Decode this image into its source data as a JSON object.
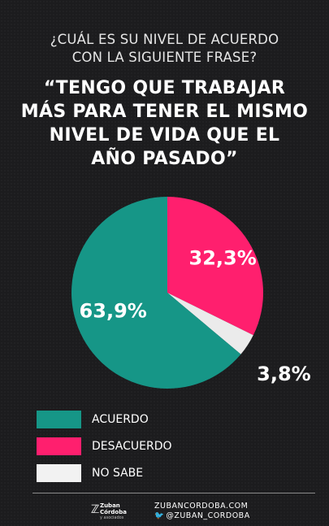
{
  "header": {
    "question_line1": "¿CUÁL ES SU NIVEL DE ACUERDO",
    "question_line2": "CON LA SIGUIENTE FRASE?",
    "statement_line1": "“TENGO QUE TRABAJAR",
    "statement_line2": "MÁS PARA TENER EL MISMO",
    "statement_line3": "NIVEL DE VIDA QUE EL",
    "statement_line4": "AÑO PASADO”"
  },
  "chart_data": {
    "type": "pie",
    "title": "",
    "slices": [
      {
        "label": "DESACUERDO",
        "value": 32.3,
        "display": "32,3%",
        "color": "#ff1f6e"
      },
      {
        "label": "NO SABE",
        "value": 3.8,
        "display": "3,8%",
        "color": "#ebebeb"
      },
      {
        "label": "ACUERDO",
        "value": 63.9,
        "display": "63,9%",
        "color": "#169687"
      }
    ],
    "legend": [
      "ACUERDO",
      "DESACUERDO",
      "NO SABE"
    ],
    "legend_placement": "bottom-left"
  },
  "legend": {
    "items": [
      {
        "label": "ACUERDO",
        "color": "#169687"
      },
      {
        "label": "DESACUERDO",
        "color": "#ff1f6e"
      },
      {
        "label": "NO SABE",
        "color": "#f2f2f2"
      }
    ]
  },
  "footer": {
    "logo_line1": "Zuban",
    "logo_line2": "Córdoba",
    "logo_sub": "y asociados",
    "website": "ZUBANCORDOBA.COM",
    "twitter": "@ZUBAN_CORDOBA",
    "twitter_icon": "twitter-bird-icon"
  },
  "colors": {
    "background": "#1c1c1e",
    "accent_pink": "#ff1f6e",
    "accent_teal": "#169687"
  }
}
